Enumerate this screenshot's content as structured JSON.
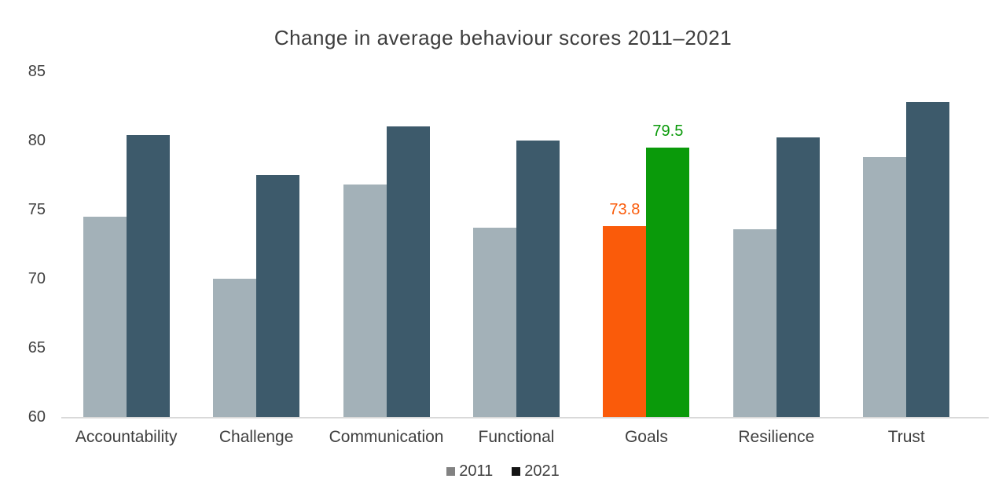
{
  "title": "Change in average behaviour scores 2011–2021",
  "colors": {
    "series_2011_bar": "#a3b1b8",
    "series_2021_bar": "#3d5a6b",
    "goals_2011_bar": "#fa5b0a",
    "goals_2021_bar": "#0a9a0a",
    "axis_line": "#d9d9d9",
    "text": "#3f3f3f",
    "legend_marker_2011": "#828282",
    "legend_marker_2021": "#141414"
  },
  "chart_data": {
    "type": "bar",
    "title": "Change in average behaviour scores 2011–2021",
    "categories": [
      "Accountability",
      "Challenge",
      "Communication",
      "Functional",
      "Goals",
      "Resilience",
      "Trust"
    ],
    "series": [
      {
        "name": "2011",
        "color": "#a3b1b8",
        "values": [
          74.5,
          70.0,
          76.8,
          73.7,
          73.8,
          73.6,
          78.8
        ]
      },
      {
        "name": "2021",
        "color": "#3d5a6b",
        "values": [
          80.4,
          77.5,
          81.0,
          80.0,
          79.5,
          80.2,
          82.8
        ]
      }
    ],
    "highlight": {
      "category": "Goals",
      "series_colors": [
        "#fa5b0a",
        "#0a9a0a"
      ],
      "data_labels": [
        "73.8",
        "79.5"
      ]
    },
    "xlabel": "",
    "ylabel": "",
    "ylim": [
      60,
      85
    ],
    "yticks": [
      60,
      65,
      70,
      75,
      80,
      85
    ],
    "grid": false,
    "legend_position": "bottom",
    "legend": [
      {
        "label": "2011",
        "marker_color": "#828282"
      },
      {
        "label": "2021",
        "marker_color": "#141414"
      }
    ]
  }
}
